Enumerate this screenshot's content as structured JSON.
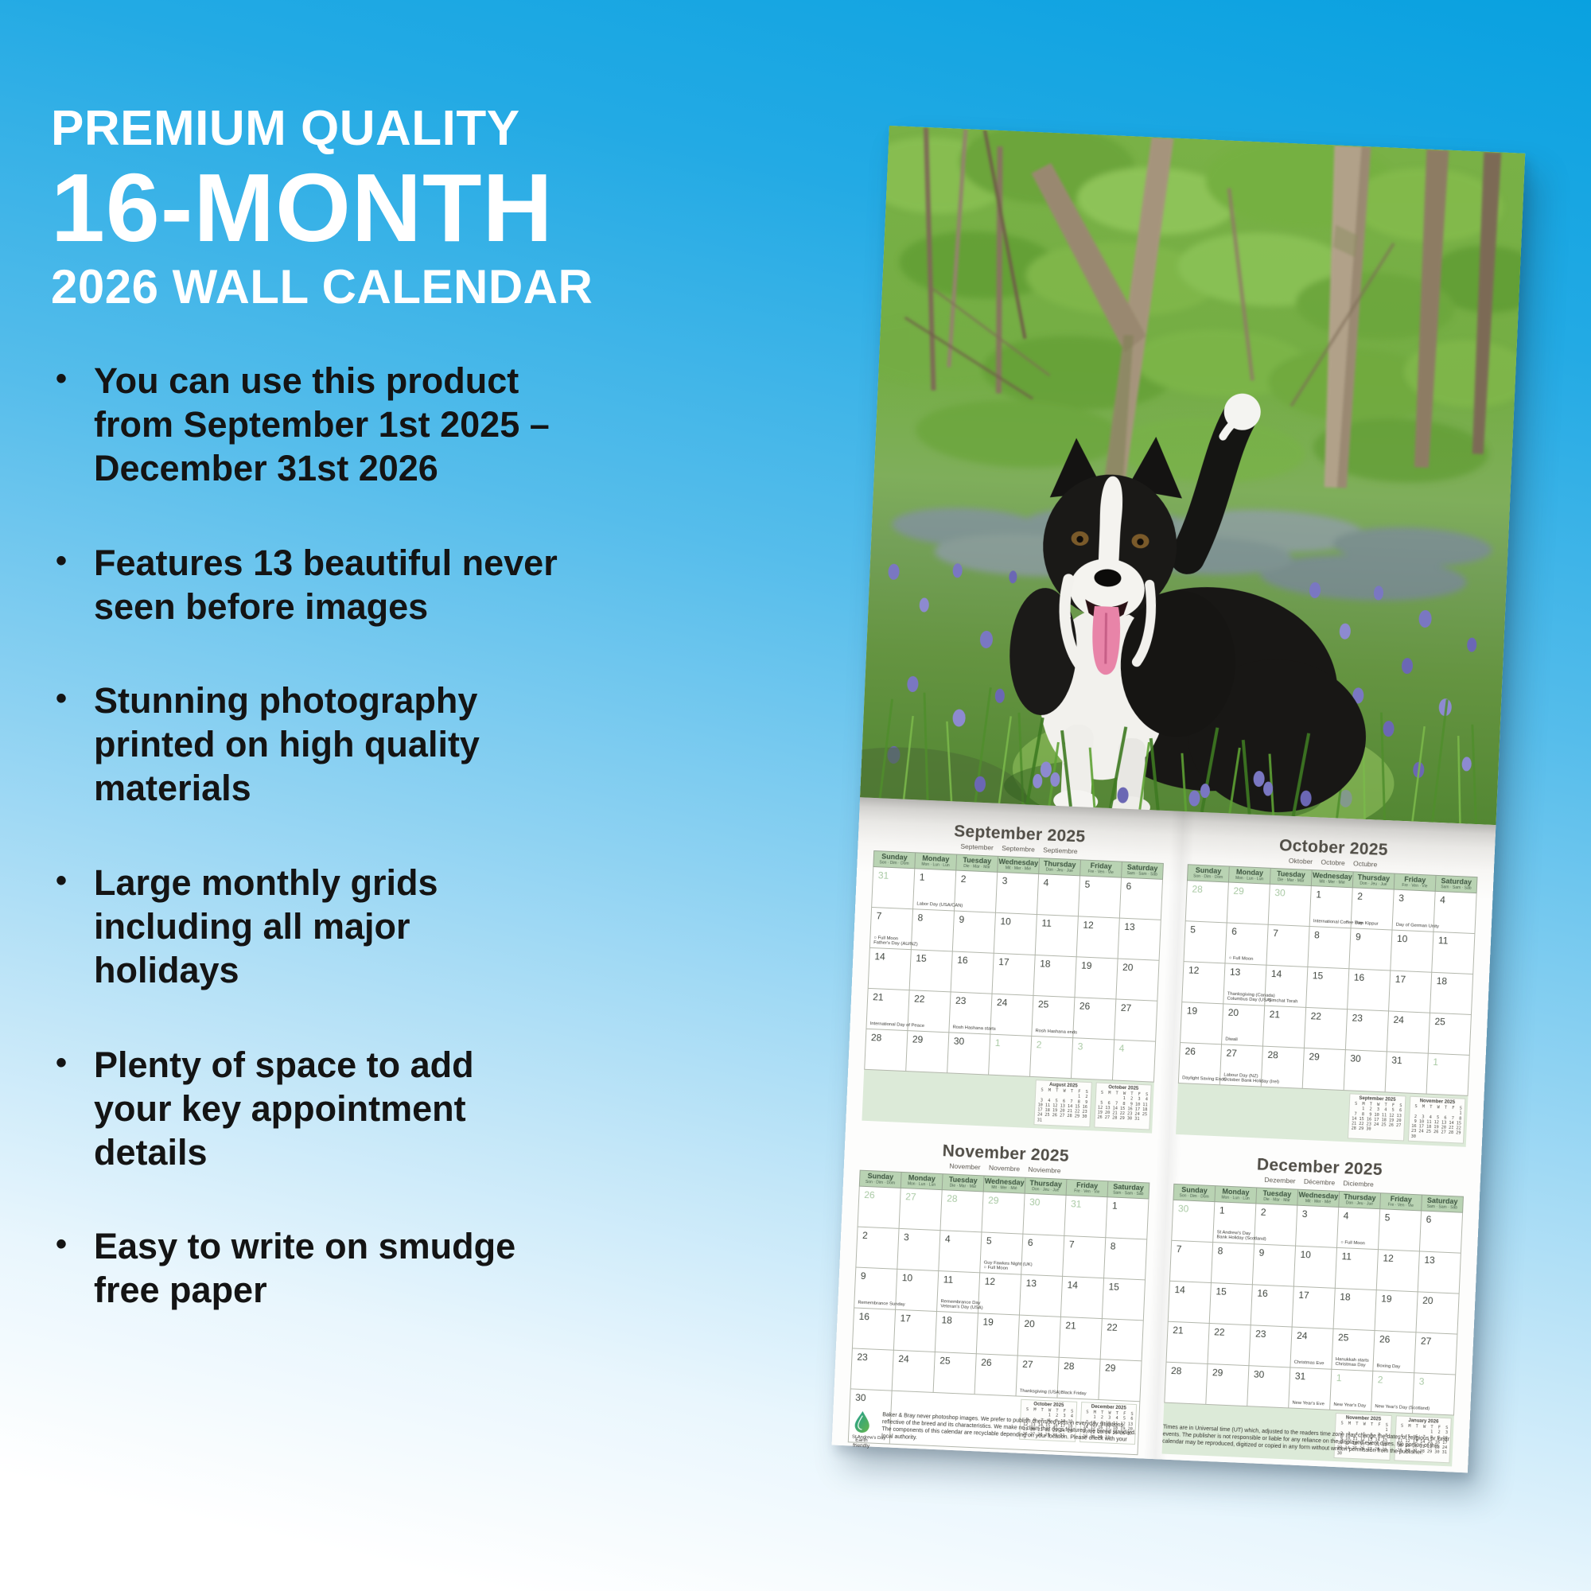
{
  "colors": {
    "background_top": "#09a1e0",
    "background_bottom": "#ffffff",
    "title_text": "#ffffff",
    "body_text": "#141414",
    "hdr": "#b9d3b3",
    "strip": "#dcead8",
    "grey_day": "#a9c9a4"
  },
  "left_panel": {
    "title_line1": "PREMIUM QUALITY",
    "title_line2": "16-MONTH",
    "title_line3": "2026 WALL CALENDAR",
    "bullets": [
      "You can use this product from September 1st 2025 – December 31st 2026",
      "Features 13 beautiful never seen before images",
      "Stunning photography printed on high quality materials",
      "Large monthly grids including all major holidays",
      "Plenty of space to add your key appointment details",
      "Easy to write on smudge free paper"
    ]
  },
  "calendar": {
    "day_headers": [
      {
        "name": "Sunday",
        "sub": "Son · Dim · Dom"
      },
      {
        "name": "Monday",
        "sub": "Mon · Lun · Lun"
      },
      {
        "name": "Tuesday",
        "sub": "Die · Mar · Mar"
      },
      {
        "name": "Wednesday",
        "sub": "Mit · Mer · Mié"
      },
      {
        "name": "Thursday",
        "sub": "Don · Jeu · Jue"
      },
      {
        "name": "Friday",
        "sub": "Fre · Ven · Vie"
      },
      {
        "name": "Saturday",
        "sub": "Sam · Sam · Sáb"
      }
    ],
    "mini_header": " S  M  T  W  T  F  S",
    "mini_months": {
      "August 2025": [
        "                1  2",
        " 3  4  5  6  7  8  9",
        "10 11 12 13 14 15 16",
        "17 18 19 20 21 22 23",
        "24 25 26 27 28 29 30",
        "31"
      ],
      "September 2025": [
        "    1  2  3  4  5  6",
        " 7  8  9 10 11 12 13",
        "14 15 16 17 18 19 20",
        "21 22 23 24 25 26 27",
        "28 29 30"
      ],
      "October 2025": [
        "          1  2  3  4",
        " 5  6  7  8  9 10 11",
        "12 13 14 15 16 17 18",
        "19 20 21 22 23 24 25",
        "26 27 28 29 30 31"
      ],
      "November 2025": [
        "                   1",
        " 2  3  4  5  6  7  8",
        " 9 10 11 12 13 14 15",
        "16 17 18 19 20 21 22",
        "23 24 25 26 27 28 29",
        "30"
      ],
      "December 2025": [
        "    1  2  3  4  5  6",
        " 7  8  9 10 11 12 13",
        "14 15 16 17 18 19 20",
        "21 22 23 24 25 26 27",
        "28 29 30 31"
      ],
      "January 2026": [
        "             1  2  3",
        " 4  5  6  7  8  9 10",
        "11 12 13 14 15 16 17",
        "18 19 20 21 22 23 24",
        "25 26 27 28 29 30 31"
      ]
    },
    "months": [
      {
        "title": "September 2025",
        "subtitle": "September Septembre Septiembre",
        "minis": [
          "August 2025",
          "October 2025"
        ],
        "inline_strip": false,
        "rows": [
          [
            {
              "d": "31",
              "g": 1
            },
            {
              "d": "1",
              "e": [
                "Labor Day (USA/CAN)"
              ]
            },
            {
              "d": "2"
            },
            {
              "d": "3"
            },
            {
              "d": "4"
            },
            {
              "d": "5"
            },
            {
              "d": "6"
            }
          ],
          [
            {
              "d": "7",
              "e": [
                "○ Full Moon",
                "Father's Day (AU/NZ)"
              ]
            },
            {
              "d": "8"
            },
            {
              "d": "9"
            },
            {
              "d": "10"
            },
            {
              "d": "11"
            },
            {
              "d": "12"
            },
            {
              "d": "13"
            }
          ],
          [
            {
              "d": "14"
            },
            {
              "d": "15"
            },
            {
              "d": "16"
            },
            {
              "d": "17"
            },
            {
              "d": "18"
            },
            {
              "d": "19"
            },
            {
              "d": "20"
            }
          ],
          [
            {
              "d": "21",
              "e": [
                "International Day of Peace"
              ]
            },
            {
              "d": "22"
            },
            {
              "d": "23",
              "e": [
                "Rosh Hashana starts"
              ]
            },
            {
              "d": "24"
            },
            {
              "d": "25",
              "e": [
                "Rosh Hashana ends"
              ]
            },
            {
              "d": "26"
            },
            {
              "d": "27"
            }
          ],
          [
            {
              "d": "28"
            },
            {
              "d": "29"
            },
            {
              "d": "30"
            },
            {
              "d": "1",
              "g": 1
            },
            {
              "d": "2",
              "g": 1
            },
            {
              "d": "3",
              "g": 1
            },
            {
              "d": "4",
              "g": 1
            }
          ]
        ]
      },
      {
        "title": "October 2025",
        "subtitle": "Oktober Octobre Octubre",
        "minis": [
          "September 2025",
          "November 2025"
        ],
        "inline_strip": false,
        "rows": [
          [
            {
              "d": "28",
              "g": 1
            },
            {
              "d": "29",
              "g": 1
            },
            {
              "d": "30",
              "g": 1
            },
            {
              "d": "1",
              "e": [
                "International Coffee Day"
              ]
            },
            {
              "d": "2",
              "e": [
                "Yom Kippur"
              ]
            },
            {
              "d": "3",
              "e": [
                "Day of German Unity"
              ]
            },
            {
              "d": "4"
            }
          ],
          [
            {
              "d": "5"
            },
            {
              "d": "6",
              "e": [
                "○ Full Moon"
              ]
            },
            {
              "d": "7"
            },
            {
              "d": "8"
            },
            {
              "d": "9"
            },
            {
              "d": "10"
            },
            {
              "d": "11"
            }
          ],
          [
            {
              "d": "12"
            },
            {
              "d": "13",
              "e": [
                "Thanksgiving (Canada)",
                "Columbus Day (USA)"
              ]
            },
            {
              "d": "14",
              "e": [
                "Simchat Torah"
              ]
            },
            {
              "d": "15"
            },
            {
              "d": "16"
            },
            {
              "d": "17"
            },
            {
              "d": "18"
            }
          ],
          [
            {
              "d": "19"
            },
            {
              "d": "20",
              "e": [
                "Diwali"
              ]
            },
            {
              "d": "21"
            },
            {
              "d": "22"
            },
            {
              "d": "23"
            },
            {
              "d": "24"
            },
            {
              "d": "25"
            }
          ],
          [
            {
              "d": "26",
              "e": [
                "Daylight Saving Ends"
              ]
            },
            {
              "d": "27",
              "e": [
                "Labour Day (NZ)",
                "October Bank Holiday (Irel)"
              ]
            },
            {
              "d": "28"
            },
            {
              "d": "29"
            },
            {
              "d": "30"
            },
            {
              "d": "31"
            },
            {
              "d": "1",
              "g": 1
            }
          ]
        ]
      },
      {
        "title": "November 2025",
        "subtitle": "November Novembre Noviembre",
        "minis": [
          "October 2025",
          "December 2025"
        ],
        "inline_strip": true,
        "rows": [
          [
            {
              "d": "26",
              "g": 1
            },
            {
              "d": "27",
              "g": 1
            },
            {
              "d": "28",
              "g": 1
            },
            {
              "d": "29",
              "g": 1
            },
            {
              "d": "30",
              "g": 1
            },
            {
              "d": "31",
              "g": 1
            },
            {
              "d": "1"
            }
          ],
          [
            {
              "d": "2"
            },
            {
              "d": "3"
            },
            {
              "d": "4"
            },
            {
              "d": "5",
              "e": [
                "Guy Fawkes Night (UK)",
                "○ Full Moon"
              ]
            },
            {
              "d": "6"
            },
            {
              "d": "7"
            },
            {
              "d": "8"
            }
          ],
          [
            {
              "d": "9",
              "e": [
                "Remembrance Sunday"
              ]
            },
            {
              "d": "10"
            },
            {
              "d": "11",
              "e": [
                "Remembrance Day",
                "Veteran's Day (USA)"
              ]
            },
            {
              "d": "12"
            },
            {
              "d": "13"
            },
            {
              "d": "14"
            },
            {
              "d": "15"
            }
          ],
          [
            {
              "d": "16"
            },
            {
              "d": "17"
            },
            {
              "d": "18"
            },
            {
              "d": "19"
            },
            {
              "d": "20"
            },
            {
              "d": "21"
            },
            {
              "d": "22"
            }
          ],
          [
            {
              "d": "23"
            },
            {
              "d": "24"
            },
            {
              "d": "25"
            },
            {
              "d": "26"
            },
            {
              "d": "27",
              "e": [
                "Thanksgiving (USA)"
              ]
            },
            {
              "d": "28",
              "e": [
                "Black Friday"
              ]
            },
            {
              "d": "29"
            }
          ],
          [
            {
              "d": "30",
              "e": [
                "St Andrew's Day"
              ]
            },
            {
              "s": 1
            }
          ]
        ]
      },
      {
        "title": "December 2025",
        "subtitle": "Dezember Décembre Diciembre",
        "minis": [
          "November 2025",
          "January 2026"
        ],
        "inline_strip": false,
        "rows": [
          [
            {
              "d": "30",
              "g": 1
            },
            {
              "d": "1",
              "e": [
                "St Andrew's Day",
                "Bank Holiday (Scotland)"
              ]
            },
            {
              "d": "2"
            },
            {
              "d": "3"
            },
            {
              "d": "4",
              "e": [
                "○ Full Moon"
              ]
            },
            {
              "d": "5"
            },
            {
              "d": "6"
            }
          ],
          [
            {
              "d": "7"
            },
            {
              "d": "8"
            },
            {
              "d": "9"
            },
            {
              "d": "10"
            },
            {
              "d": "11"
            },
            {
              "d": "12"
            },
            {
              "d": "13"
            }
          ],
          [
            {
              "d": "14"
            },
            {
              "d": "15"
            },
            {
              "d": "16"
            },
            {
              "d": "17"
            },
            {
              "d": "18"
            },
            {
              "d": "19"
            },
            {
              "d": "20"
            }
          ],
          [
            {
              "d": "21"
            },
            {
              "d": "22"
            },
            {
              "d": "23"
            },
            {
              "d": "24",
              "e": [
                "Christmas Eve"
              ]
            },
            {
              "d": "25",
              "e": [
                "Hanukkah starts",
                "Christmas Day"
              ]
            },
            {
              "d": "26",
              "e": [
                "Boxing Day"
              ]
            },
            {
              "d": "27"
            }
          ],
          [
            {
              "d": "28"
            },
            {
              "d": "29"
            },
            {
              "d": "30"
            },
            {
              "d": "31",
              "e": [
                "New Year's Eve"
              ]
            },
            {
              "d": "1",
              "g": 1,
              "e": [
                "New Year's Day"
              ]
            },
            {
              "d": "2",
              "g": 1,
              "e": [
                "New Year's Day (Scotland)"
              ]
            },
            {
              "d": "3",
              "g": 1
            }
          ]
        ]
      }
    ],
    "eco_label": "Earth friendly",
    "footer_left": "Baker & Bray never photoshop images. We prefer to publish cherished pets in everyday situations reflective of the breed and its characteristics. We make no claim that dogs featured are breed standard. The components of this calendar are recyclable depending on your location. Please check with your local authority.",
    "footer_right": "Times are in Universal time (UT) which, adjusted to the readers time zone may change the dates of religious or lunar events. The publisher is not responsible or liable for any reliance on the displayed event dates. No portion of this calendar may be reproduced, digitized or copied in any form without written permission from the publisher."
  }
}
